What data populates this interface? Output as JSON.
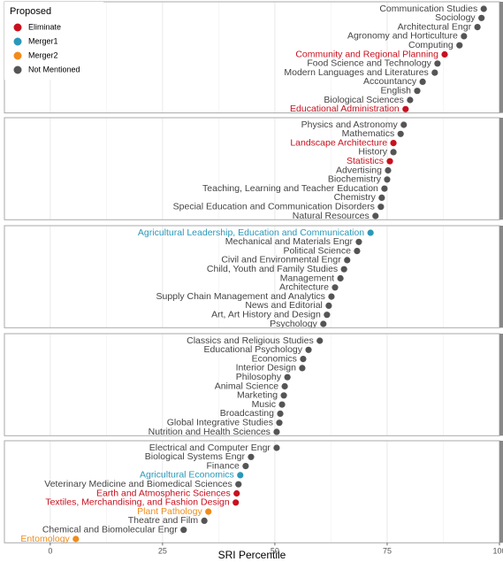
{
  "chart_data": {
    "type": "dot",
    "x_label": "SRI Percentile",
    "xlim": [
      -10.2,
      100
    ],
    "xticks": [
      0,
      25,
      50,
      75,
      100
    ],
    "grid": true,
    "legend": {
      "title": "Proposed",
      "position": "top-left"
    },
    "groups": [
      {
        "name": "Eliminate",
        "color": "#c8101e"
      },
      {
        "name": "Merger1",
        "color": "#2a98b8"
      },
      {
        "name": "Merger2",
        "color": "#f08c1c"
      },
      {
        "name": "Not Mentioned",
        "color": "#555555"
      }
    ],
    "panels": [
      {
        "categories": [
          "Communication Studies",
          "Sociology",
          "Architectural Engr",
          "Agronomy and Horticulture",
          "Computing",
          "Community and Regional Planning",
          "Food Science and Technology",
          "Modern Languages and Literatures",
          "Accountancy",
          "English",
          "Biological Sciences",
          "Educational Administration"
        ],
        "values": [
          96.5,
          96,
          95.1,
          92.1,
          91.1,
          87.8,
          86.2,
          85.6,
          82.9,
          81.7,
          80.1,
          79.1
        ],
        "groups": [
          3,
          3,
          3,
          3,
          3,
          0,
          3,
          3,
          3,
          3,
          3,
          0
        ]
      },
      {
        "categories": [
          "Physics and Astronomy",
          "Mathematics",
          "Landscape Architecture",
          "History",
          "Statistics",
          "Advertising",
          "Biochemistry",
          "Teaching, Learning and Teacher Education",
          "Chemistry",
          "Special Education and Communication Disorders",
          "Natural Resources"
        ],
        "values": [
          78.7,
          78,
          76.4,
          76.4,
          75.6,
          75.2,
          75,
          74.4,
          73.8,
          73.6,
          72.4
        ],
        "groups": [
          3,
          3,
          0,
          3,
          0,
          3,
          3,
          3,
          3,
          3,
          3
        ]
      },
      {
        "categories": [
          "Agricultural Leadership, Education and Communication",
          "Mechanical and Materials Engr",
          "Political Science",
          "Civil and Environmental Engr",
          "Child, Youth and Family Studies",
          "Management",
          "Architecture",
          "Supply Chain Management and Analytics",
          "News and Editorial",
          "Art, Art History and Design",
          "Psychology"
        ],
        "values": [
          71.3,
          68.7,
          68.3,
          66.1,
          65.4,
          64.6,
          63.4,
          62.6,
          62,
          61.6,
          60.8
        ],
        "groups": [
          1,
          3,
          3,
          3,
          3,
          3,
          3,
          3,
          3,
          3,
          3
        ]
      },
      {
        "categories": [
          "Classics and Religious Studies",
          "Educational Psychology",
          "Economics",
          "Interior Design",
          "Philosophy",
          "Animal Science",
          "Marketing",
          "Music",
          "Broadcasting",
          "Global Integrative Studies",
          "Nutrition and Health Sciences"
        ],
        "values": [
          60,
          57.5,
          56.3,
          56.1,
          52.8,
          52.2,
          52,
          51.6,
          51.2,
          51,
          50.4
        ],
        "groups": [
          3,
          3,
          3,
          3,
          3,
          3,
          3,
          3,
          3,
          3,
          3
        ]
      },
      {
        "categories": [
          "Electrical and Computer Engr",
          "Biological Systems Engr",
          "Finance",
          "Agricultural Economics",
          "Veterinary Medicine and Biomedical Sciences",
          "Earth and Atmospheric Sciences",
          "Textiles, Merchandising, and Fashion Design",
          "Plant Pathology",
          "Theatre and Film",
          "Chemical and Biomolecular Engr",
          "Entomology"
        ],
        "values": [
          50.4,
          44.7,
          43.5,
          42.3,
          41.9,
          41.5,
          41.3,
          35.2,
          34.3,
          29.7,
          5.7
        ],
        "groups": [
          3,
          3,
          3,
          1,
          3,
          0,
          0,
          2,
          3,
          3,
          2
        ]
      }
    ]
  }
}
